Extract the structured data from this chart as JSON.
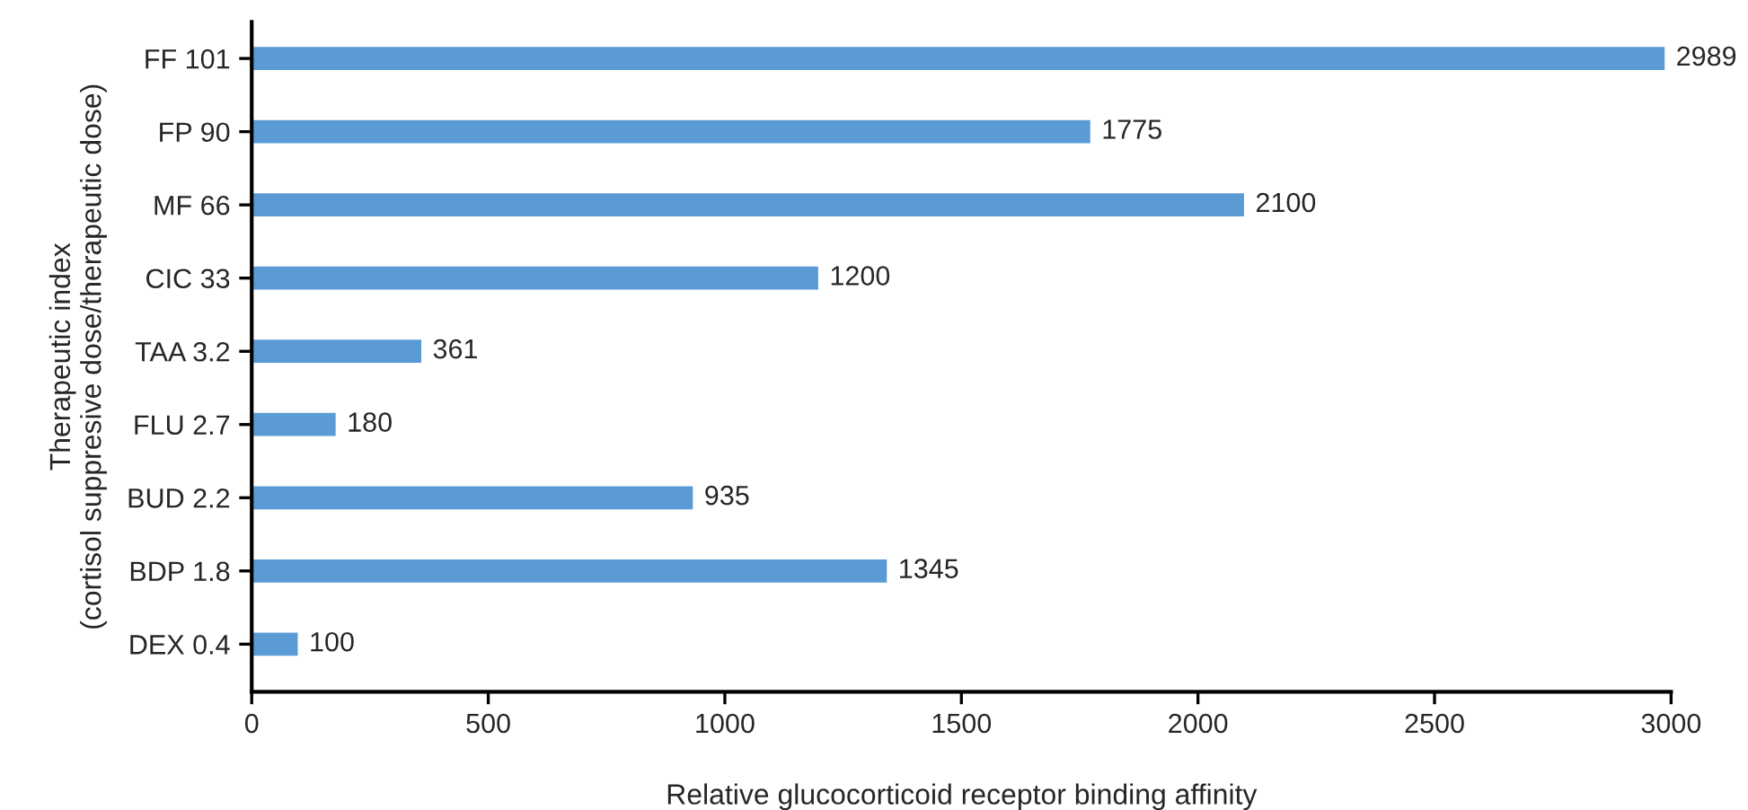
{
  "chart_data": {
    "type": "bar",
    "orientation": "horizontal",
    "categories": [
      "FF 101",
      "FP 90",
      "MF 66",
      "CIC 33",
      "TAA 3.2",
      "FLU 2.7",
      "BUD 2.2",
      "BDP 1.8",
      "DEX 0.4"
    ],
    "values": [
      2989,
      1775,
      2100,
      1200,
      361,
      180,
      935,
      1345,
      100
    ],
    "color": "#5b9bd5",
    "xlabel": "Relative glucocorticoid receptor binding affinity",
    "ylabel": "Therapeutic index\n(cortisol suppresive dose/therapeutic dose)",
    "xlim": [
      0,
      3000
    ],
    "xticks": [
      0,
      500,
      1000,
      1500,
      2000,
      2500,
      3000
    ],
    "data_labels": true,
    "grid": false,
    "legend": false
  }
}
